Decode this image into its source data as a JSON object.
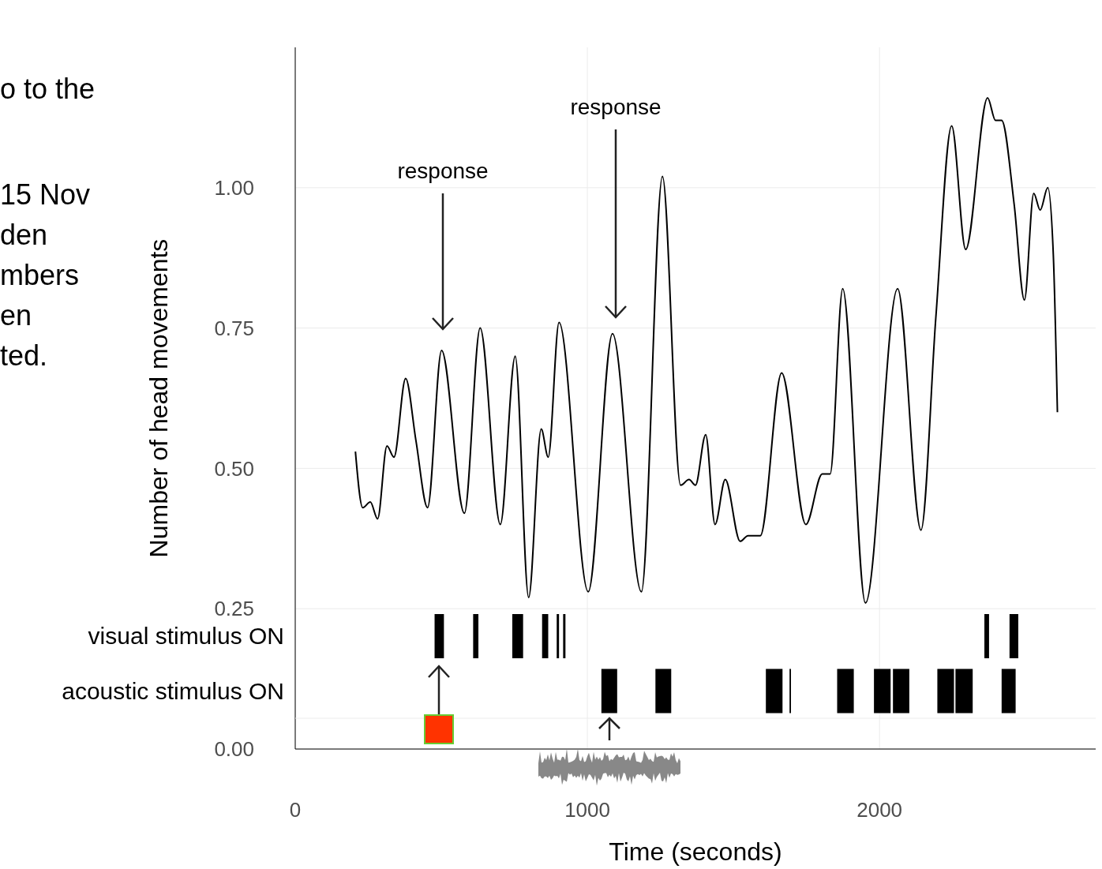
{
  "chart_data": [
    {
      "type": "line",
      "xlabel": "Time (seconds)",
      "ylabel": "Number of head movements",
      "annotations": [
        "o to the",
        "15 Nov",
        "den",
        "mbers",
        "en",
        "ted.",
        "response",
        "response"
      ],
      "x": [
        206,
        231,
        257,
        282,
        314,
        338,
        378,
        413,
        453,
        501,
        579,
        633,
        702,
        753,
        799,
        842,
        866,
        903,
        1003,
        1086,
        1185,
        1257,
        1319,
        1348,
        1370,
        1405,
        1437,
        1472,
        1523,
        1550,
        1592,
        1665,
        1748,
        1804,
        1831,
        1874,
        1952,
        2062,
        2142,
        2193,
        2247,
        2295,
        2370,
        2397,
        2418,
        2461,
        2496,
        2528,
        2550,
        2576,
        2595,
        2609
      ],
      "series": [
        {
          "color": "#000000",
          "values": [
            0.53,
            0.43,
            0.44,
            0.41,
            0.54,
            0.52,
            0.66,
            0.55,
            0.43,
            0.71,
            0.42,
            0.75,
            0.4,
            0.7,
            0.27,
            0.57,
            0.52,
            0.76,
            0.28,
            0.74,
            0.28,
            1.02,
            0.47,
            0.48,
            0.47,
            0.56,
            0.4,
            0.48,
            0.37,
            0.38,
            0.38,
            0.67,
            0.4,
            0.49,
            0.49,
            0.82,
            0.26,
            0.82,
            0.39,
            0.77,
            1.11,
            0.89,
            1.16,
            1.12,
            1.12,
            0.97,
            0.8,
            0.99,
            0.96,
            1.0,
            0.88,
            0.6
          ]
        }
      ],
      "xlim": [
        0,
        2740
      ],
      "ylim": [
        0,
        1.25
      ],
      "xticks": [
        0,
        1000,
        2000
      ],
      "yticks": [
        {
          "value": 0,
          "label": "0.00"
        },
        0.25,
        {
          "value": 0.5,
          "label": "0.50"
        },
        0.75,
        {
          "value": 1,
          "label": "1.00"
        }
      ],
      "grid": true
    },
    {
      "type": "bar",
      "orientation": "horizontal",
      "categories": [
        "visual stimulus ON",
        "acoustic stimulus ON"
      ],
      "series": [
        {
          "color": "#000000",
          "base": [
            477,
            1048
          ],
          "values": [
            32,
            54
          ]
        },
        {
          "color": "#000000",
          "base": [
            609,
            1233
          ],
          "values": [
            18,
            54
          ]
        },
        {
          "color": "#000000",
          "base": [
            743,
            1611
          ],
          "values": [
            37,
            57
          ]
        },
        {
          "color": "#000000",
          "base": [
            845,
            1692
          ],
          "values": [
            21,
            5
          ]
        },
        {
          "color": "#000000",
          "base": [
            895,
            1855
          ],
          "values": [
            8,
            57
          ]
        },
        {
          "color": "#000000",
          "base": [
            917,
            1981
          ],
          "values": [
            8,
            57
          ]
        },
        {
          "color": "#000000",
          "base": [
            2359,
            2046
          ],
          "values": [
            16,
            56
          ]
        },
        {
          "color": "#000000",
          "base": [
            2445,
            2198
          ],
          "values": [
            30,
            57
          ]
        },
        {
          "color": "#000000",
          "base": [
            null,
            2260
          ],
          "values": [
            null,
            59
          ]
        },
        {
          "color": "#000000",
          "base": [
            null,
            2418
          ],
          "values": [
            null,
            48
          ]
        }
      ],
      "xlim": [
        0,
        2740
      ],
      "tick_labels": "y"
    }
  ]
}
